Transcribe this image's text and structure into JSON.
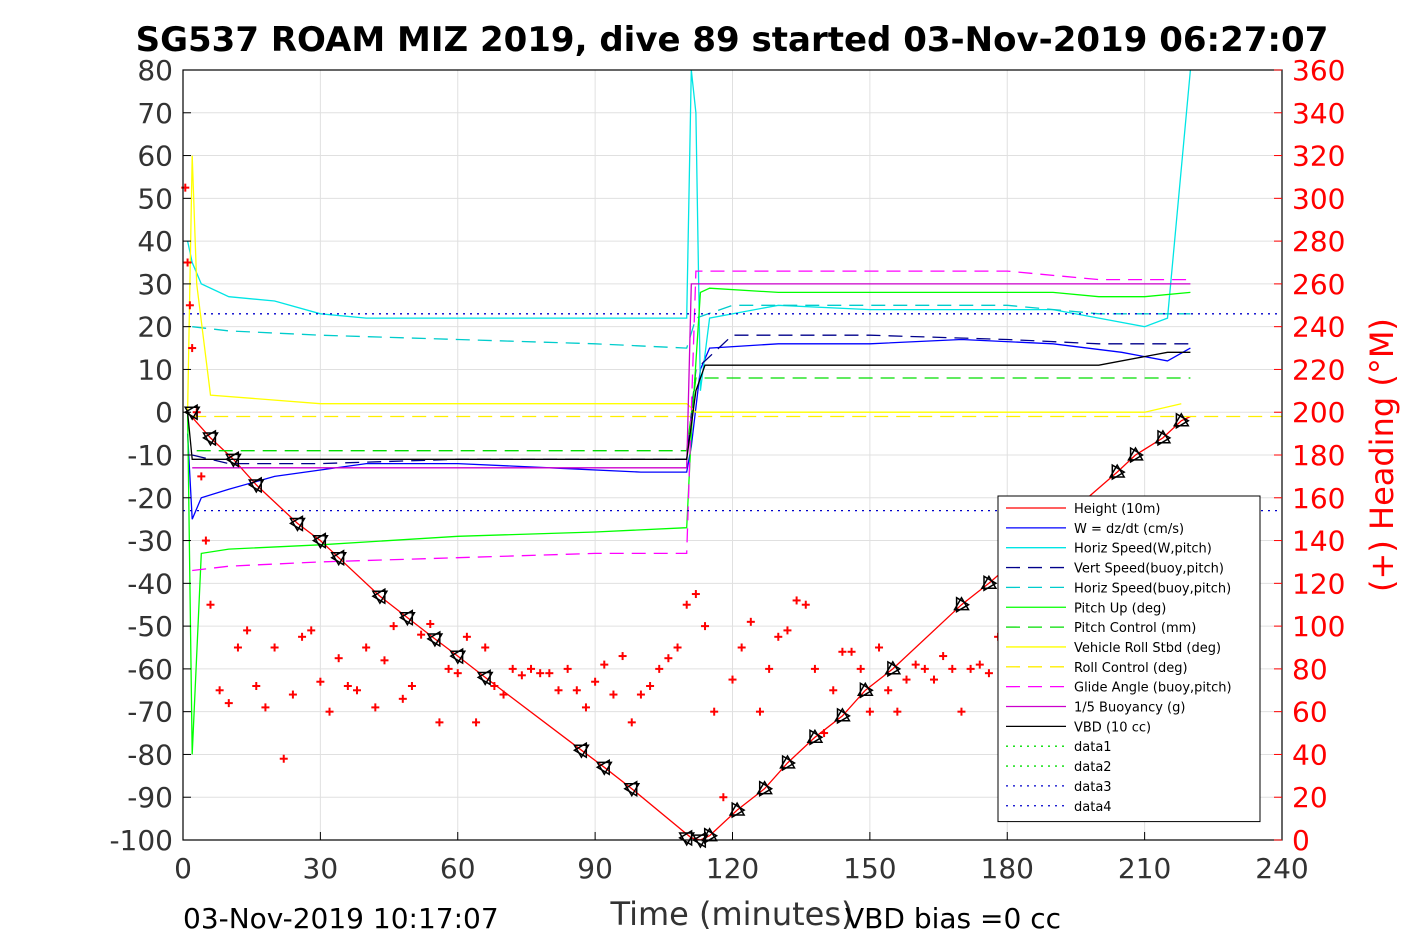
{
  "chart_data": {
    "type": "line",
    "title": "SG537 ROAM MIZ 2019, dive 89 started 03-Nov-2019 06:27:07",
    "xlabel": "Time (minutes)",
    "ylabel_right": "(+) Heading (°M)",
    "footer_left": "03-Nov-2019 10:17:07",
    "footer_right": "VBD bias =0 cc",
    "xlim": [
      0,
      240
    ],
    "ylim": [
      -100,
      80
    ],
    "ylim_right": [
      0,
      360
    ],
    "xticks": [
      "0",
      "30",
      "60",
      "90",
      "120",
      "150",
      "180",
      "210",
      "240"
    ],
    "yticks": [
      "80",
      "70",
      "60",
      "50",
      "40",
      "30",
      "20",
      "10",
      "0",
      "-10",
      "-20",
      "-30",
      "-40",
      "-50",
      "-60",
      "-70",
      "-80",
      "-90",
      "-100"
    ],
    "yticks_right": [
      "360",
      "340",
      "320",
      "300",
      "280",
      "260",
      "240",
      "220",
      "200",
      "180",
      "160",
      "140",
      "120",
      "100",
      "80",
      "60",
      "40",
      "20",
      "0"
    ],
    "grid": true,
    "legend_position": "lower-right",
    "series": [
      {
        "name": "Height (10m)",
        "color": "#ff0000",
        "style": "solid",
        "x": [
          1,
          6,
          11,
          16,
          25,
          30,
          34,
          43,
          49,
          55,
          60,
          66,
          87,
          92,
          98,
          111,
          113,
          115,
          121,
          127,
          132,
          138,
          144,
          149,
          155,
          170,
          176,
          204,
          208,
          214,
          218,
          220
        ],
        "values": [
          0,
          -6,
          -11,
          -17,
          -26,
          -30,
          -34,
          -43,
          -48,
          -53,
          -57,
          -62,
          -79,
          -83,
          -88,
          -99.5,
          -100,
          -99,
          -93,
          -88,
          -82,
          -76,
          -71,
          -65,
          -60,
          -45,
          -40,
          -14,
          -10,
          -6,
          -2,
          -1
        ]
      },
      {
        "name": "W = dz/dt (cm/s)",
        "color": "#0000ff",
        "style": "solid",
        "x": [
          1,
          2,
          4,
          10,
          20,
          40,
          60,
          80,
          100,
          110,
          111,
          113,
          115,
          130,
          150,
          170,
          190,
          205,
          215,
          220
        ],
        "values": [
          -5,
          -25,
          -20,
          -18,
          -15,
          -12,
          -12,
          -13,
          -14,
          -14,
          -8,
          10,
          15,
          16,
          16,
          17,
          16,
          14,
          12,
          15
        ]
      },
      {
        "name": "Horiz Speed(W,pitch)",
        "color": "#00e5e5",
        "style": "solid",
        "x": [
          1,
          2,
          4,
          10,
          20,
          30,
          40,
          60,
          80,
          100,
          110,
          111,
          112,
          113,
          115,
          130,
          150,
          170,
          190,
          200,
          210,
          215,
          220
        ],
        "values": [
          40,
          35,
          30,
          27,
          26,
          23,
          22,
          22,
          22,
          22,
          22,
          80,
          70,
          5,
          22,
          25,
          24,
          24,
          24,
          22,
          20,
          22,
          80
        ]
      },
      {
        "name": "Vert Speed(buoy,pitch)",
        "color": "#00008b",
        "style": "dashed",
        "x": [
          2,
          10,
          30,
          60,
          90,
          110,
          112,
          120,
          150,
          180,
          200,
          220
        ],
        "values": [
          -10,
          -12,
          -12,
          -11,
          -11,
          -11,
          10,
          18,
          18,
          17,
          16,
          16
        ]
      },
      {
        "name": "Horiz Speed(buoy,pitch)",
        "color": "#00cccc",
        "style": "dashed",
        "x": [
          2,
          10,
          30,
          60,
          90,
          110,
          112,
          120,
          150,
          180,
          200,
          220
        ],
        "values": [
          20,
          19,
          18,
          17,
          16,
          15,
          22,
          25,
          25,
          25,
          23,
          23
        ]
      },
      {
        "name": "Pitch Up (deg)",
        "color": "#00ff00",
        "style": "solid",
        "x": [
          1,
          2,
          4,
          10,
          30,
          60,
          90,
          110,
          111,
          113,
          115,
          130,
          150,
          170,
          190,
          200,
          210,
          220
        ],
        "values": [
          0,
          -80,
          -33,
          -32,
          -31,
          -29,
          -28,
          -27,
          -5,
          28,
          29,
          28,
          28,
          28,
          28,
          27,
          27,
          28
        ]
      },
      {
        "name": "Pitch Control (mm)",
        "color": "#00dd00",
        "style": "dashed",
        "x": [
          3,
          30,
          60,
          90,
          110,
          112,
          150,
          180,
          200,
          220
        ],
        "values": [
          -9,
          -9,
          -9,
          -9,
          -9,
          8,
          8,
          8,
          8,
          8
        ]
      },
      {
        "name": "Vehicle Roll Stbd (deg)",
        "color": "#ffff00",
        "style": "solid",
        "x": [
          1,
          2,
          3,
          6,
          30,
          60,
          90,
          110,
          112,
          130,
          150,
          170,
          190,
          210,
          218
        ],
        "values": [
          0,
          60,
          30,
          4,
          2,
          2,
          2,
          2,
          0,
          0,
          0,
          0,
          0,
          0,
          2
        ]
      },
      {
        "name": "Roll Control (deg)",
        "color": "#ffee00",
        "style": "dashed",
        "x": [
          2,
          240
        ],
        "values": [
          -1,
          -1
        ]
      },
      {
        "name": "Glide Angle (buoy,pitch)",
        "color": "#ff00ff",
        "style": "dashed",
        "x": [
          2,
          10,
          30,
          60,
          90,
          110,
          112,
          150,
          180,
          200,
          220
        ],
        "values": [
          -37,
          -36,
          -35,
          -34,
          -33,
          -33,
          33,
          33,
          33,
          31,
          31
        ]
      },
      {
        "name": "1/5 Buoyancy (g)",
        "color": "#cc00cc",
        "style": "solid",
        "x": [
          2,
          110,
          111,
          220
        ],
        "values": [
          -13,
          -13,
          30,
          30
        ]
      },
      {
        "name": "VBD (10 cc)",
        "color": "#000000",
        "style": "solid",
        "x": [
          1,
          2,
          3,
          110,
          112,
          114,
          200,
          215,
          220
        ],
        "values": [
          0,
          -11,
          -11,
          -11,
          5,
          11,
          11,
          14,
          14
        ]
      },
      {
        "name": "data1",
        "color": "#00dd00",
        "style": "dotted",
        "x": [],
        "values": []
      },
      {
        "name": "data2",
        "color": "#00dd00",
        "style": "dotted",
        "x": [],
        "values": []
      },
      {
        "name": "data3",
        "color": "#0000cc",
        "style": "dotted",
        "x": [
          0,
          240
        ],
        "values": [
          23,
          23
        ]
      },
      {
        "name": "data4",
        "color": "#0000cc",
        "style": "dotted",
        "x": [
          0,
          240
        ],
        "values": [
          -23,
          -23
        ]
      }
    ],
    "heading_series": {
      "name": "Heading",
      "color": "#ff0000",
      "marker": "+",
      "axis": "right",
      "x": [
        0.5,
        1,
        1.5,
        2,
        3,
        4,
        5,
        6,
        8,
        10,
        12,
        14,
        16,
        18,
        20,
        22,
        24,
        26,
        28,
        30,
        32,
        34,
        36,
        38,
        40,
        42,
        44,
        46,
        48,
        50,
        52,
        54,
        56,
        58,
        60,
        62,
        64,
        66,
        68,
        70,
        72,
        74,
        76,
        78,
        80,
        82,
        84,
        86,
        88,
        90,
        92,
        94,
        96,
        98,
        100,
        102,
        104,
        106,
        108,
        110,
        112,
        114,
        116,
        118,
        120,
        122,
        124,
        126,
        128,
        130,
        132,
        134,
        136,
        138,
        140,
        142,
        144,
        146,
        148,
        150,
        152,
        154,
        156,
        158,
        160,
        162,
        164,
        166,
        168,
        170,
        172,
        174,
        176,
        178
      ],
      "values": [
        305,
        270,
        250,
        230,
        200,
        170,
        140,
        110,
        70,
        64,
        90,
        98,
        72,
        62,
        90,
        38,
        68,
        95,
        98,
        74,
        60,
        85,
        72,
        70,
        90,
        62,
        84,
        100,
        66,
        72,
        96,
        101,
        55,
        80,
        78,
        95,
        55,
        90,
        72,
        68,
        80,
        77,
        80,
        78,
        78,
        70,
        80,
        70,
        62,
        74,
        82,
        68,
        86,
        55,
        68,
        72,
        80,
        85,
        90,
        110,
        115,
        100,
        60,
        20,
        75,
        90,
        102,
        60,
        80,
        95,
        98,
        112,
        110,
        80,
        50,
        70,
        88,
        88,
        80,
        60,
        90,
        70,
        60,
        75,
        82,
        80,
        75,
        86,
        80,
        60,
        80,
        82,
        78,
        95
      ]
    },
    "down_markers": {
      "x": [
        2,
        6,
        11,
        16,
        25,
        30,
        34,
        43,
        49,
        55,
        60,
        66,
        87,
        92,
        98,
        110,
        113
      ],
      "values": [
        0,
        -6,
        -11,
        -17,
        -26,
        -30,
        -34,
        -43,
        -48,
        -53,
        -57,
        -62,
        -79,
        -83,
        -88,
        -99.5,
        -100
      ]
    },
    "up_markers": {
      "x": [
        115,
        121,
        127,
        132,
        138,
        144,
        149,
        155,
        170,
        176,
        204,
        208,
        214,
        218
      ],
      "values": [
        -99,
        -93,
        -88,
        -82,
        -76,
        -71,
        -65,
        -60,
        -45,
        -40,
        -14,
        -10,
        -6,
        -2
      ]
    }
  }
}
